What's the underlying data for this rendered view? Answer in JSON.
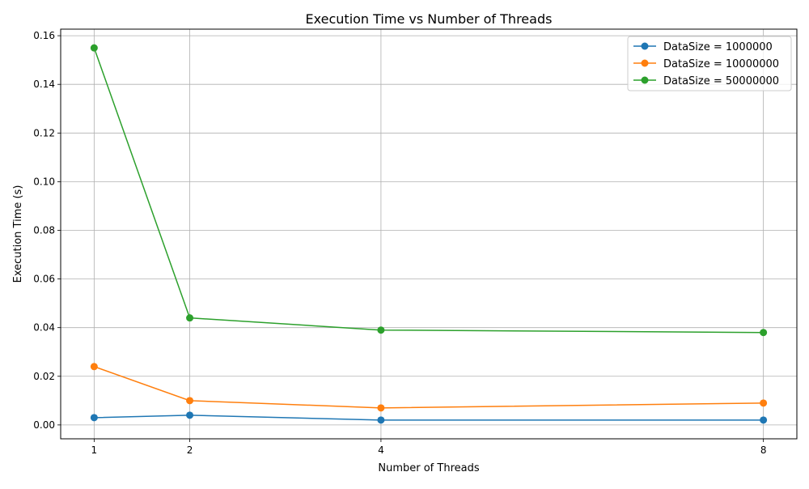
{
  "chart_data": {
    "type": "line",
    "title": "Execution Time vs Number of Threads",
    "xlabel": "Number of Threads",
    "ylabel": "Execution Time (s)",
    "x": [
      1,
      2,
      4,
      8
    ],
    "xticks": [
      1,
      2,
      4,
      8
    ],
    "xtick_labels": [
      "1",
      "2",
      "4",
      "8"
    ],
    "yticks": [
      0.0,
      0.02,
      0.04,
      0.06,
      0.08,
      0.1,
      0.12,
      0.14,
      0.16
    ],
    "ytick_labels": [
      "0.00",
      "0.02",
      "0.04",
      "0.06",
      "0.08",
      "0.10",
      "0.12",
      "0.14",
      "0.16"
    ],
    "xlim": [
      0.65,
      8.35
    ],
    "ylim": [
      -0.0057,
      0.1627
    ],
    "grid": true,
    "legend_position": "top-right",
    "marker": "circle",
    "series": [
      {
        "name": "DataSize = 1000000",
        "color": "#1f77b4",
        "values": [
          0.003,
          0.004,
          0.002,
          0.002
        ]
      },
      {
        "name": "DataSize = 10000000",
        "color": "#ff7f0e",
        "values": [
          0.024,
          0.01,
          0.007,
          0.009
        ]
      },
      {
        "name": "DataSize = 50000000",
        "color": "#2ca02c",
        "values": [
          0.155,
          0.044,
          0.039,
          0.038
        ]
      }
    ]
  }
}
